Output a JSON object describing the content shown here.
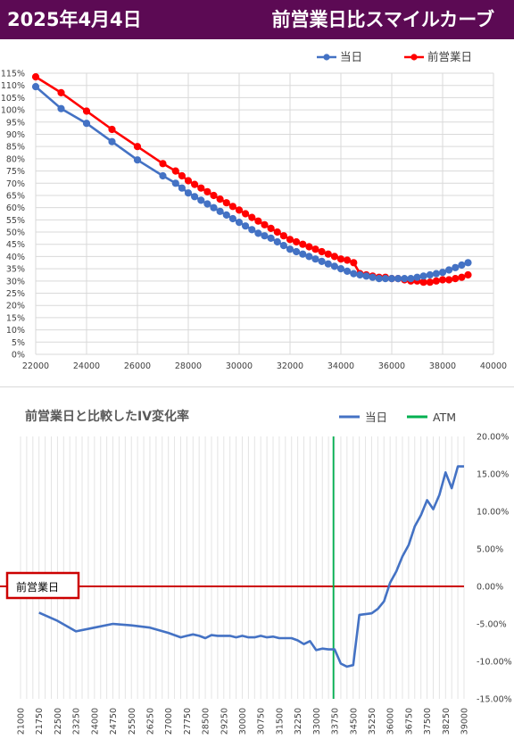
{
  "header": {
    "date": "2025年4月4日",
    "title": "前営業日比スマイルカーブ"
  },
  "colors": {
    "banner": "#5c0a54",
    "today": "#4472c4",
    "prev": "#ff0000",
    "atm": "#00b050",
    "zero_line": "#cc0000"
  },
  "chart_data": [
    {
      "type": "line",
      "title": "",
      "xlabel": "",
      "ylabel": "",
      "xlim": [
        22000,
        40000
      ],
      "ylim": [
        0,
        115
      ],
      "y_unit": "%",
      "x_ticks": [
        "22000",
        "24000",
        "26000",
        "28000",
        "30000",
        "32000",
        "34000",
        "36000",
        "38000",
        "40000"
      ],
      "y_ticks": [
        "0%",
        "5%",
        "10%",
        "15%",
        "20%",
        "25%",
        "30%",
        "35%",
        "40%",
        "45%",
        "50%",
        "55%",
        "60%",
        "65%",
        "70%",
        "75%",
        "80%",
        "85%",
        "90%",
        "95%",
        "100%",
        "105%",
        "110%",
        "115%"
      ],
      "grid": true,
      "legend_position": "top-right",
      "series": [
        {
          "name": "当日",
          "x": [
            22000,
            23000,
            24000,
            25000,
            26000,
            27000,
            27500,
            27750,
            28000,
            28250,
            28500,
            28750,
            29000,
            29250,
            29500,
            29750,
            30000,
            30250,
            30500,
            30750,
            31000,
            31250,
            31500,
            31750,
            32000,
            32250,
            32500,
            32750,
            33000,
            33250,
            33500,
            33750,
            34000,
            34250,
            34500,
            34750,
            35000,
            35250,
            35500,
            35750,
            36000,
            36250,
            36500,
            36750,
            37000,
            37250,
            37500,
            37750,
            38000,
            38250,
            38500,
            38750,
            39000
          ],
          "y": [
            109.5,
            100.5,
            94.5,
            87,
            79.5,
            73,
            70,
            68,
            66,
            64.5,
            63,
            61.5,
            60,
            58.5,
            57,
            55.5,
            54,
            52.5,
            51,
            49.5,
            48.5,
            47.5,
            46,
            44.5,
            43,
            42,
            41,
            40,
            39,
            38,
            37,
            36,
            35,
            34,
            33,
            32.5,
            32,
            31.5,
            31,
            31,
            31,
            31,
            31,
            31,
            31.5,
            32,
            32.5,
            33,
            33.5,
            34.5,
            35.5,
            36.5,
            37.5
          ]
        },
        {
          "name": "前営業日",
          "x": [
            22000,
            23000,
            24000,
            25000,
            26000,
            27000,
            27500,
            27750,
            28000,
            28250,
            28500,
            28750,
            29000,
            29250,
            29500,
            29750,
            30000,
            30250,
            30500,
            30750,
            31000,
            31250,
            31500,
            31750,
            32000,
            32250,
            32500,
            32750,
            33000,
            33250,
            33500,
            33750,
            34000,
            34250,
            34500,
            34750,
            35000,
            35250,
            35500,
            35750,
            36000,
            36250,
            36500,
            36750,
            37000,
            37250,
            37500,
            37750,
            38000,
            38250,
            38500,
            38750,
            39000
          ],
          "y": [
            113.5,
            107,
            99.5,
            92,
            85,
            78,
            75,
            73,
            71,
            69.5,
            68,
            66.5,
            65,
            63.5,
            62,
            60.5,
            59,
            57.5,
            56,
            54.5,
            53,
            51.5,
            50,
            48.5,
            47,
            46,
            45,
            44,
            43,
            42,
            41,
            40,
            39,
            38.5,
            37.5,
            33,
            32.5,
            32,
            31.5,
            31.5,
            31,
            31,
            30.5,
            30,
            30,
            29.5,
            29.5,
            30,
            30.5,
            30.5,
            31,
            31.5,
            32.5
          ]
        }
      ]
    },
    {
      "type": "line",
      "title": "前営業日と比較したIV変化率",
      "xlabel": "",
      "ylabel": "",
      "xlim": [
        21000,
        39000
      ],
      "ylim": [
        -15,
        20
      ],
      "y_unit": "%",
      "y_axis_side": "right",
      "x_ticks": [
        "21000",
        "21750",
        "22500",
        "23250",
        "24000",
        "24750",
        "25500",
        "26250",
        "27000",
        "27750",
        "28500",
        "29250",
        "30000",
        "30750",
        "31500",
        "32250",
        "33000",
        "33750",
        "34500",
        "35250",
        "36000",
        "36750",
        "37500",
        "38250",
        "39000"
      ],
      "y_ticks": [
        "-15.00%",
        "-10.00%",
        "-5.00%",
        "0.00%",
        "5.00%",
        "10.00%",
        "15.00%",
        "20.00%"
      ],
      "grid": true,
      "legend_position": "top-right",
      "annotation": "前営業日",
      "atm_x": 33700,
      "series": [
        {
          "name": "当日",
          "x": [
            21750,
            22500,
            23250,
            24000,
            24750,
            25500,
            26250,
            27000,
            27500,
            27750,
            28000,
            28250,
            28500,
            28750,
            29000,
            29250,
            29500,
            29750,
            30000,
            30250,
            30500,
            30750,
            31000,
            31250,
            31500,
            31750,
            32000,
            32250,
            32500,
            32750,
            33000,
            33250,
            33500,
            33750,
            34000,
            34250,
            34500,
            34750,
            35000,
            35250,
            35500,
            35750,
            36000,
            36250,
            36500,
            36750,
            37000,
            37250,
            37500,
            37750,
            38000,
            38250,
            38500,
            38750,
            39000
          ],
          "y": [
            -3.5,
            -4.6,
            -6.0,
            -5.5,
            -5.0,
            -5.2,
            -5.5,
            -6.2,
            -6.8,
            -6.6,
            -6.4,
            -6.6,
            -6.9,
            -6.5,
            -6.6,
            -6.6,
            -6.6,
            -6.8,
            -6.6,
            -6.8,
            -6.8,
            -6.6,
            -6.8,
            -6.7,
            -6.9,
            -6.9,
            -6.9,
            -7.2,
            -7.7,
            -7.3,
            -8.5,
            -8.3,
            -8.4,
            -8.4,
            -10.3,
            -10.7,
            -10.5,
            -3.8,
            -3.7,
            -3.6,
            -3.0,
            -2.0,
            0.5,
            2.0,
            4.0,
            5.5,
            8.0,
            9.5,
            11.5,
            10.3,
            12.2,
            15.2,
            13.1,
            16.0,
            16.0
          ]
        }
      ]
    }
  ]
}
